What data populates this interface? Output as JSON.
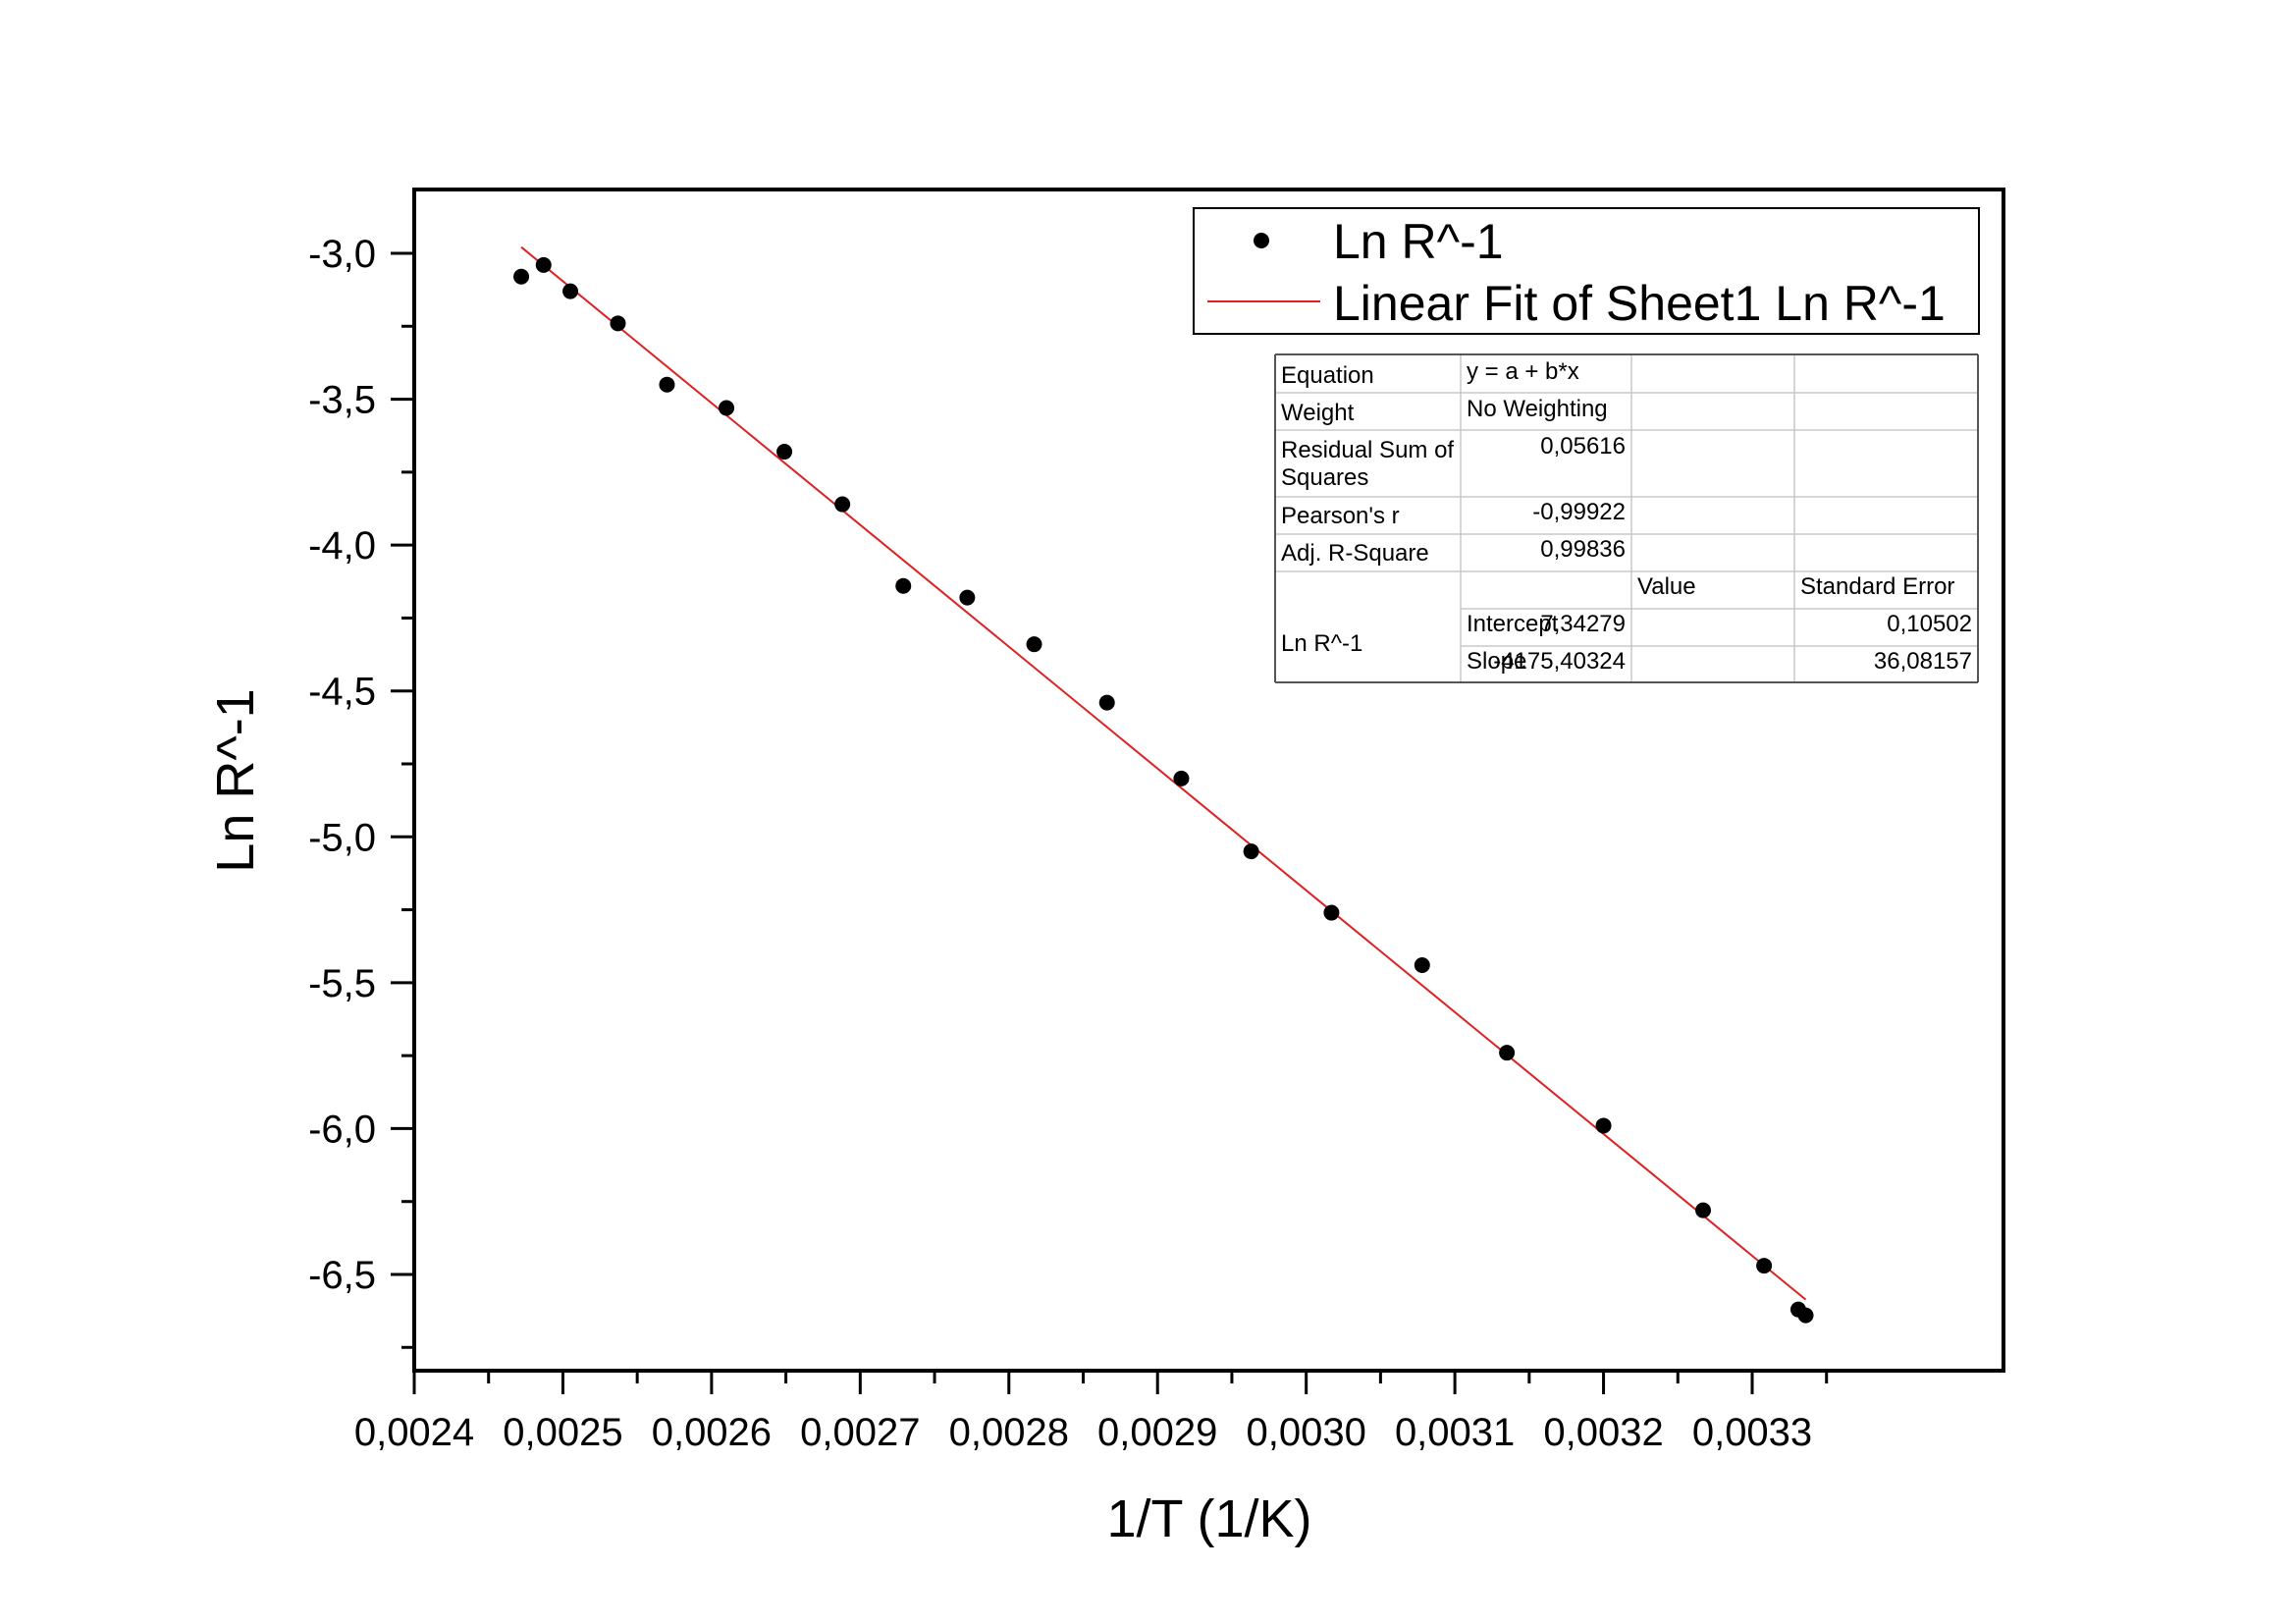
{
  "chart_data": {
    "type": "scatter",
    "xlabel": "1/T (1/K)",
    "ylabel": "Ln R^-1",
    "xlim": [
      0.0024,
      0.003345
    ],
    "ylim": [
      -6.82,
      -2.78
    ],
    "x_ticks": [
      0.0024,
      0.0025,
      0.0026,
      0.0027,
      0.0028,
      0.0029,
      0.003,
      0.0031,
      0.0032,
      0.0033
    ],
    "x_tick_labels": [
      "0,0024",
      "0,0025",
      "0,0026",
      "0,0027",
      "0,0028",
      "0,0029",
      "0,0030",
      "0,0031",
      "0,0032",
      "0,0033"
    ],
    "y_ticks": [
      -3.0,
      -3.5,
      -4.0,
      -4.5,
      -5.0,
      -5.5,
      -6.0,
      -6.5
    ],
    "y_tick_labels": [
      "-3,0",
      "-3,5",
      "-4,0",
      "-4,5",
      "-5,0",
      "-5,5",
      "-6,0",
      "-6,5"
    ],
    "grid": false,
    "legend_position": "top-right",
    "legend": [
      {
        "label": "Ln R^-1",
        "kind": "marker",
        "color": "#000000"
      },
      {
        "label": "Linear Fit of Sheet1 Ln R^-1",
        "kind": "line",
        "color": "#e02020"
      }
    ],
    "series": [
      {
        "name": "Ln R^-1",
        "kind": "scatter",
        "color": "#000000",
        "points": [
          [
            0.002472,
            -3.08
          ],
          [
            0.002487,
            -3.04
          ],
          [
            0.002505,
            -3.13
          ],
          [
            0.002537,
            -3.24
          ],
          [
            0.00257,
            -3.45
          ],
          [
            0.00261,
            -3.53
          ],
          [
            0.002649,
            -3.68
          ],
          [
            0.002688,
            -3.86
          ],
          [
            0.002729,
            -4.14
          ],
          [
            0.002772,
            -4.18
          ],
          [
            0.002817,
            -4.34
          ],
          [
            0.002866,
            -4.54
          ],
          [
            0.002916,
            -4.8
          ],
          [
            0.002963,
            -5.05
          ],
          [
            0.003017,
            -5.26
          ],
          [
            0.003078,
            -5.44
          ],
          [
            0.003135,
            -5.74
          ],
          [
            0.0032,
            -5.99
          ],
          [
            0.003267,
            -6.28
          ],
          [
            0.003308,
            -6.47
          ],
          [
            0.003331,
            -6.62
          ],
          [
            0.003336,
            -6.64
          ]
        ]
      },
      {
        "name": "Linear Fit of Sheet1 Ln R^-1",
        "kind": "line",
        "color": "#e02020",
        "intercept": 7.34279,
        "slope": -4175.40324,
        "x_range": [
          0.002472,
          0.003336
        ]
      }
    ],
    "fit_table": {
      "rows": [
        [
          "Equation",
          "y = a + b*x",
          "",
          ""
        ],
        [
          "Weight",
          "No Weighting",
          "",
          ""
        ],
        [
          "Residual Sum of Squares",
          "0,05616",
          "",
          ""
        ],
        [
          "Pearson's r",
          "-0,99922",
          "",
          ""
        ],
        [
          "Adj. R-Square",
          "0,99836",
          "",
          ""
        ],
        [
          "",
          "",
          "Value",
          "Standard Error"
        ],
        [
          "Ln R^-1",
          "Intercept",
          "7,34279",
          "0,10502"
        ],
        [
          "",
          "Slope",
          "-4175,40324",
          "36,08157"
        ]
      ]
    }
  }
}
